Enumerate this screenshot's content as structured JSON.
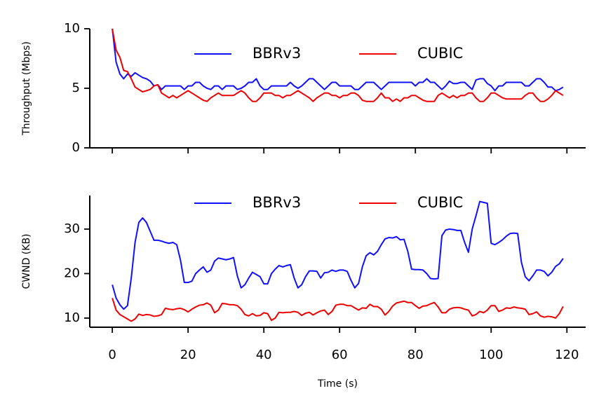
{
  "chart_data": [
    {
      "type": "line",
      "ylabel": "Throughput (Mbps)",
      "x": [
        0,
        1,
        2,
        3,
        4,
        5,
        6,
        7,
        8,
        9,
        10,
        11,
        12,
        13,
        14,
        15,
        16,
        17,
        18,
        19,
        20,
        21,
        22,
        23,
        24,
        25,
        26,
        27,
        28,
        29,
        30,
        31,
        32,
        33,
        34,
        35,
        36,
        37,
        38,
        39,
        40,
        41,
        42,
        43,
        44,
        45,
        46,
        47,
        48,
        49,
        50,
        51,
        52,
        53,
        54,
        55,
        56,
        57,
        58,
        59,
        60,
        61,
        62,
        63,
        64,
        65,
        66,
        67,
        68,
        69,
        70,
        71,
        72,
        73,
        74,
        75,
        76,
        77,
        78,
        79,
        80,
        81,
        82,
        83,
        84,
        85,
        86,
        87,
        88,
        89,
        90,
        91,
        92,
        93,
        94,
        95,
        96,
        97,
        98,
        99,
        100,
        101,
        102,
        103,
        104,
        105,
        106,
        107,
        108,
        109,
        110,
        111,
        112,
        113,
        114,
        115,
        116,
        117,
        118,
        119
      ],
      "series": [
        {
          "name": "BBRv3",
          "color": "#1010ff",
          "values": [
            10,
            7.2,
            6.2,
            5.8,
            6.2,
            6.0,
            6.3,
            6.1,
            5.9,
            5.8,
            5.6,
            5.2,
            5.3,
            4.9,
            5.2,
            5.2,
            5.2,
            5.2,
            5.2,
            4.9,
            5.2,
            5.2,
            5.5,
            5.5,
            5.2,
            5.0,
            4.9,
            5.2,
            5.2,
            4.9,
            5.2,
            5.2,
            5.2,
            4.9,
            5.0,
            5.2,
            5.5,
            5.5,
            5.8,
            5.2,
            4.9,
            4.9,
            5.2,
            5.2,
            5.2,
            5.2,
            5.2,
            5.5,
            5.2,
            5.0,
            5.2,
            5.5,
            5.8,
            5.8,
            5.5,
            5.2,
            4.9,
            5.2,
            5.5,
            5.5,
            5.2,
            5.2,
            5.2,
            5.2,
            4.9,
            4.9,
            5.2,
            5.5,
            5.5,
            5.5,
            5.2,
            4.9,
            5.2,
            5.5,
            5.5,
            5.5,
            5.5,
            5.5,
            5.5,
            5.5,
            5.2,
            5.5,
            5.5,
            5.8,
            5.5,
            5.5,
            5.2,
            4.9,
            5.2,
            5.6,
            5.4,
            5.4,
            5.5,
            5.5,
            5.2,
            4.9,
            5.7,
            5.8,
            5.8,
            5.4,
            5.2,
            4.8,
            5.2,
            5.2,
            5.5,
            5.5,
            5.5,
            5.5,
            5.5,
            5.2,
            5.2,
            5.5,
            5.8,
            5.8,
            5.5,
            5.1,
            5.1,
            4.8,
            4.9,
            5.1
          ]
        },
        {
          "name": "CUBIC",
          "color": "#ee0000",
          "values": [
            10,
            8.2,
            7.6,
            6.5,
            6.4,
            5.8,
            5.1,
            4.9,
            4.7,
            4.8,
            4.9,
            5.2,
            5.3,
            4.6,
            4.4,
            4.2,
            4.4,
            4.2,
            4.4,
            4.6,
            4.8,
            4.6,
            4.4,
            4.2,
            4.0,
            3.9,
            4.2,
            4.4,
            4.6,
            4.4,
            4.4,
            4.4,
            4.4,
            4.6,
            4.8,
            4.6,
            4.2,
            3.9,
            3.9,
            4.2,
            4.6,
            4.6,
            4.6,
            4.4,
            4.4,
            4.2,
            4.4,
            4.4,
            4.6,
            4.8,
            4.6,
            4.4,
            4.2,
            3.9,
            4.2,
            4.4,
            4.6,
            4.6,
            4.4,
            4.4,
            4.2,
            4.4,
            4.4,
            4.6,
            4.6,
            4.4,
            4.0,
            3.9,
            3.9,
            3.9,
            4.2,
            4.6,
            4.2,
            4.2,
            3.9,
            4.1,
            3.9,
            4.2,
            4.2,
            4.4,
            4.4,
            4.2,
            4.0,
            3.9,
            3.9,
            3.9,
            4.4,
            4.6,
            4.4,
            4.2,
            4.4,
            4.2,
            4.4,
            4.4,
            4.6,
            4.6,
            4.2,
            3.9,
            3.9,
            4.2,
            4.6,
            4.6,
            4.4,
            4.2,
            4.1,
            4.1,
            4.1,
            4.1,
            4.1,
            4.4,
            4.6,
            4.6,
            4.2,
            3.9,
            3.9,
            4.1,
            4.4,
            4.8,
            4.6,
            4.4
          ]
        }
      ],
      "xlim": [
        -5.95,
        124.95
      ],
      "xticks": [
        0,
        20,
        40,
        60,
        80,
        100,
        120
      ],
      "xtick_labels": false,
      "ylim": [
        0,
        10
      ],
      "yticks": [
        0,
        5,
        10
      ],
      "legend": "upper center",
      "legend_columns": 2
    },
    {
      "type": "line",
      "ylabel": "CWND (KB)",
      "xlabel": "Time (s)",
      "x": [
        0,
        1,
        2,
        3,
        4,
        5,
        6,
        7,
        8,
        9,
        10,
        11,
        12,
        13,
        14,
        15,
        16,
        17,
        18,
        19,
        20,
        21,
        22,
        23,
        24,
        25,
        26,
        27,
        28,
        29,
        30,
        31,
        32,
        33,
        34,
        35,
        36,
        37,
        38,
        39,
        40,
        41,
        42,
        43,
        44,
        45,
        46,
        47,
        48,
        49,
        50,
        51,
        52,
        53,
        54,
        55,
        56,
        57,
        58,
        59,
        60,
        61,
        62,
        63,
        64,
        65,
        66,
        67,
        68,
        69,
        70,
        71,
        72,
        73,
        74,
        75,
        76,
        77,
        78,
        79,
        80,
        81,
        82,
        83,
        84,
        85,
        86,
        87,
        88,
        89,
        90,
        91,
        92,
        93,
        94,
        95,
        96,
        97,
        98,
        99,
        100,
        101,
        102,
        103,
        104,
        105,
        106,
        107,
        108,
        109,
        110,
        111,
        112,
        113,
        114,
        115,
        116,
        117,
        118,
        119
      ],
      "series": [
        {
          "name": "BBRv3",
          "color": "#1010ff",
          "values": [
            17.5,
            14.5,
            13,
            12,
            12.8,
            19,
            27,
            31.5,
            32.5,
            31.5,
            29.5,
            27.5,
            27.5,
            27.3,
            27,
            26.8,
            27,
            26.5,
            23,
            18,
            18,
            18.3,
            20,
            20.8,
            21.5,
            20.3,
            20.8,
            22.8,
            23.5,
            23.3,
            23.1,
            23.3,
            23.6,
            19.5,
            16.8,
            17.5,
            19,
            20.3,
            19.8,
            19.3,
            17.7,
            17.7,
            20,
            21,
            21.8,
            21.5,
            21.8,
            22,
            19,
            16.8,
            17.5,
            19.3,
            20.6,
            20.6,
            20.5,
            19,
            20.2,
            20.3,
            20.8,
            20.5,
            20.8,
            20.8,
            20.5,
            18.5,
            16.8,
            17.8,
            21.5,
            24,
            24.7,
            24.2,
            25,
            26.5,
            27.8,
            28.1,
            28,
            28.3,
            27.6,
            27.7,
            25,
            21,
            20.9,
            20.9,
            20.8,
            20,
            18.9,
            18.8,
            18.9,
            28.5,
            29.8,
            30,
            29.9,
            29.7,
            29.7,
            27,
            24.8,
            30,
            33,
            36.2,
            36,
            35.8,
            26.8,
            26.5,
            27,
            27.6,
            28.4,
            29,
            29.1,
            29,
            22.5,
            19.3,
            18.4,
            19.5,
            20.8,
            20.8,
            20.5,
            19.5,
            20.3,
            21.6,
            22.2,
            23.4
          ]
        },
        {
          "name": "CUBIC",
          "color": "#ee0000",
          "values": [
            14.5,
            11.8,
            10.8,
            10.3,
            9.8,
            9.3,
            9.8,
            10.9,
            10.6,
            10.8,
            10.7,
            10.4,
            10.5,
            10.8,
            12.2,
            12,
            11.9,
            12.1,
            12.2,
            11.9,
            11.4,
            12,
            12.5,
            12.9,
            13,
            13.4,
            12.9,
            11.2,
            11.8,
            13.3,
            13.2,
            13,
            13,
            12.8,
            12,
            10.8,
            10.5,
            11,
            10.5,
            10.6,
            11.2,
            11,
            9.5,
            10,
            11.3,
            11.2,
            11.3,
            11.3,
            11.5,
            11.3,
            10.6,
            11.1,
            11.3,
            10.7,
            11.2,
            11.6,
            11.8,
            10.8,
            11.5,
            12.9,
            13.1,
            13.1,
            12.8,
            12.8,
            12.3,
            11.8,
            12.3,
            12.2,
            13.1,
            12.6,
            12.6,
            12,
            10.7,
            11.5,
            12.7,
            13.4,
            13.6,
            13.8,
            13.5,
            13.5,
            12.8,
            12.2,
            12.7,
            12.8,
            13.2,
            13.5,
            12.5,
            11.2,
            11.2,
            12,
            12.3,
            12.4,
            12.3,
            12,
            11.8,
            10.5,
            10.8,
            11.5,
            11.2,
            11.8,
            12.8,
            12.8,
            11.5,
            11.8,
            12.3,
            12.2,
            12.5,
            12.3,
            12.2,
            12,
            10.8,
            11,
            11.4,
            10.5,
            10.2,
            10.4,
            10.3,
            10,
            11,
            12.6
          ]
        }
      ],
      "xlim": [
        -5.95,
        124.95
      ],
      "xticks": [
        0,
        20,
        40,
        60,
        80,
        100,
        120
      ],
      "ylim": [
        7.95,
        37.55
      ],
      "yticks": [
        10,
        20,
        30
      ],
      "legend": "upper center",
      "legend_columns": 2
    }
  ]
}
